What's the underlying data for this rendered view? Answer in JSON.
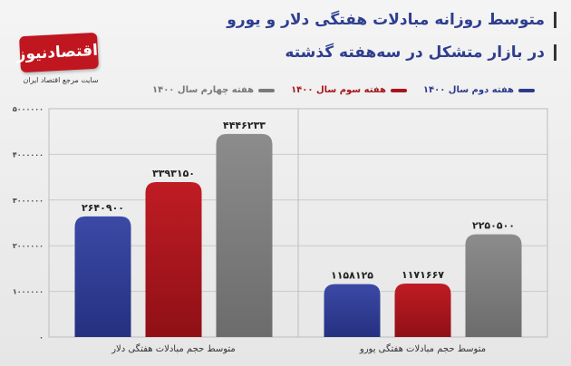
{
  "header": {
    "title_line1": "متوسط روزانه مبادلات هفتگی دلار و یورو",
    "title_line2": "در بازار متشکل در سه‌هفته گذشته"
  },
  "logo": {
    "name": "اقتصادنیوز",
    "tagline": "سایت مرجع اقتصاد ایران"
  },
  "colors": {
    "series1": "#2e3a8c",
    "series2": "#a8151c",
    "series3": "#7a7a7a"
  },
  "chart_data": {
    "type": "bar",
    "categories": [
      "متوسط حجم مبادلات هفتگی دلار",
      "متوسط حجم مبادلات هفتگی یورو"
    ],
    "series": [
      {
        "name": "هفته دوم سال ۱۴۰۰",
        "values": [
          2640900,
          1158125
        ],
        "labels": [
          "۲۶۴۰۹۰۰",
          "۱۱۵۸۱۲۵"
        ]
      },
      {
        "name": "هفته سوم سال ۱۴۰۰",
        "values": [
          3393150,
          1171667
        ],
        "labels": [
          "۳۳۹۳۱۵۰",
          "۱۱۷۱۶۶۷"
        ]
      },
      {
        "name": "هفته چهارم سال ۱۴۰۰",
        "values": [
          4446233,
          2250500
        ],
        "labels": [
          "۴۴۴۶۲۳۳",
          "۲۲۵۰۵۰۰"
        ]
      }
    ],
    "ylim": [
      0,
      5000000
    ],
    "yticks": [
      0,
      1000000,
      2000000,
      3000000,
      4000000,
      5000000
    ],
    "ytick_labels": [
      "۰",
      "۱۰۰۰۰۰۰",
      "۲۰۰۰۰۰۰",
      "۳۰۰۰۰۰۰",
      "۴۰۰۰۰۰۰",
      "۵۰۰۰۰۰۰"
    ],
    "grid": true,
    "legend": "top-right"
  }
}
